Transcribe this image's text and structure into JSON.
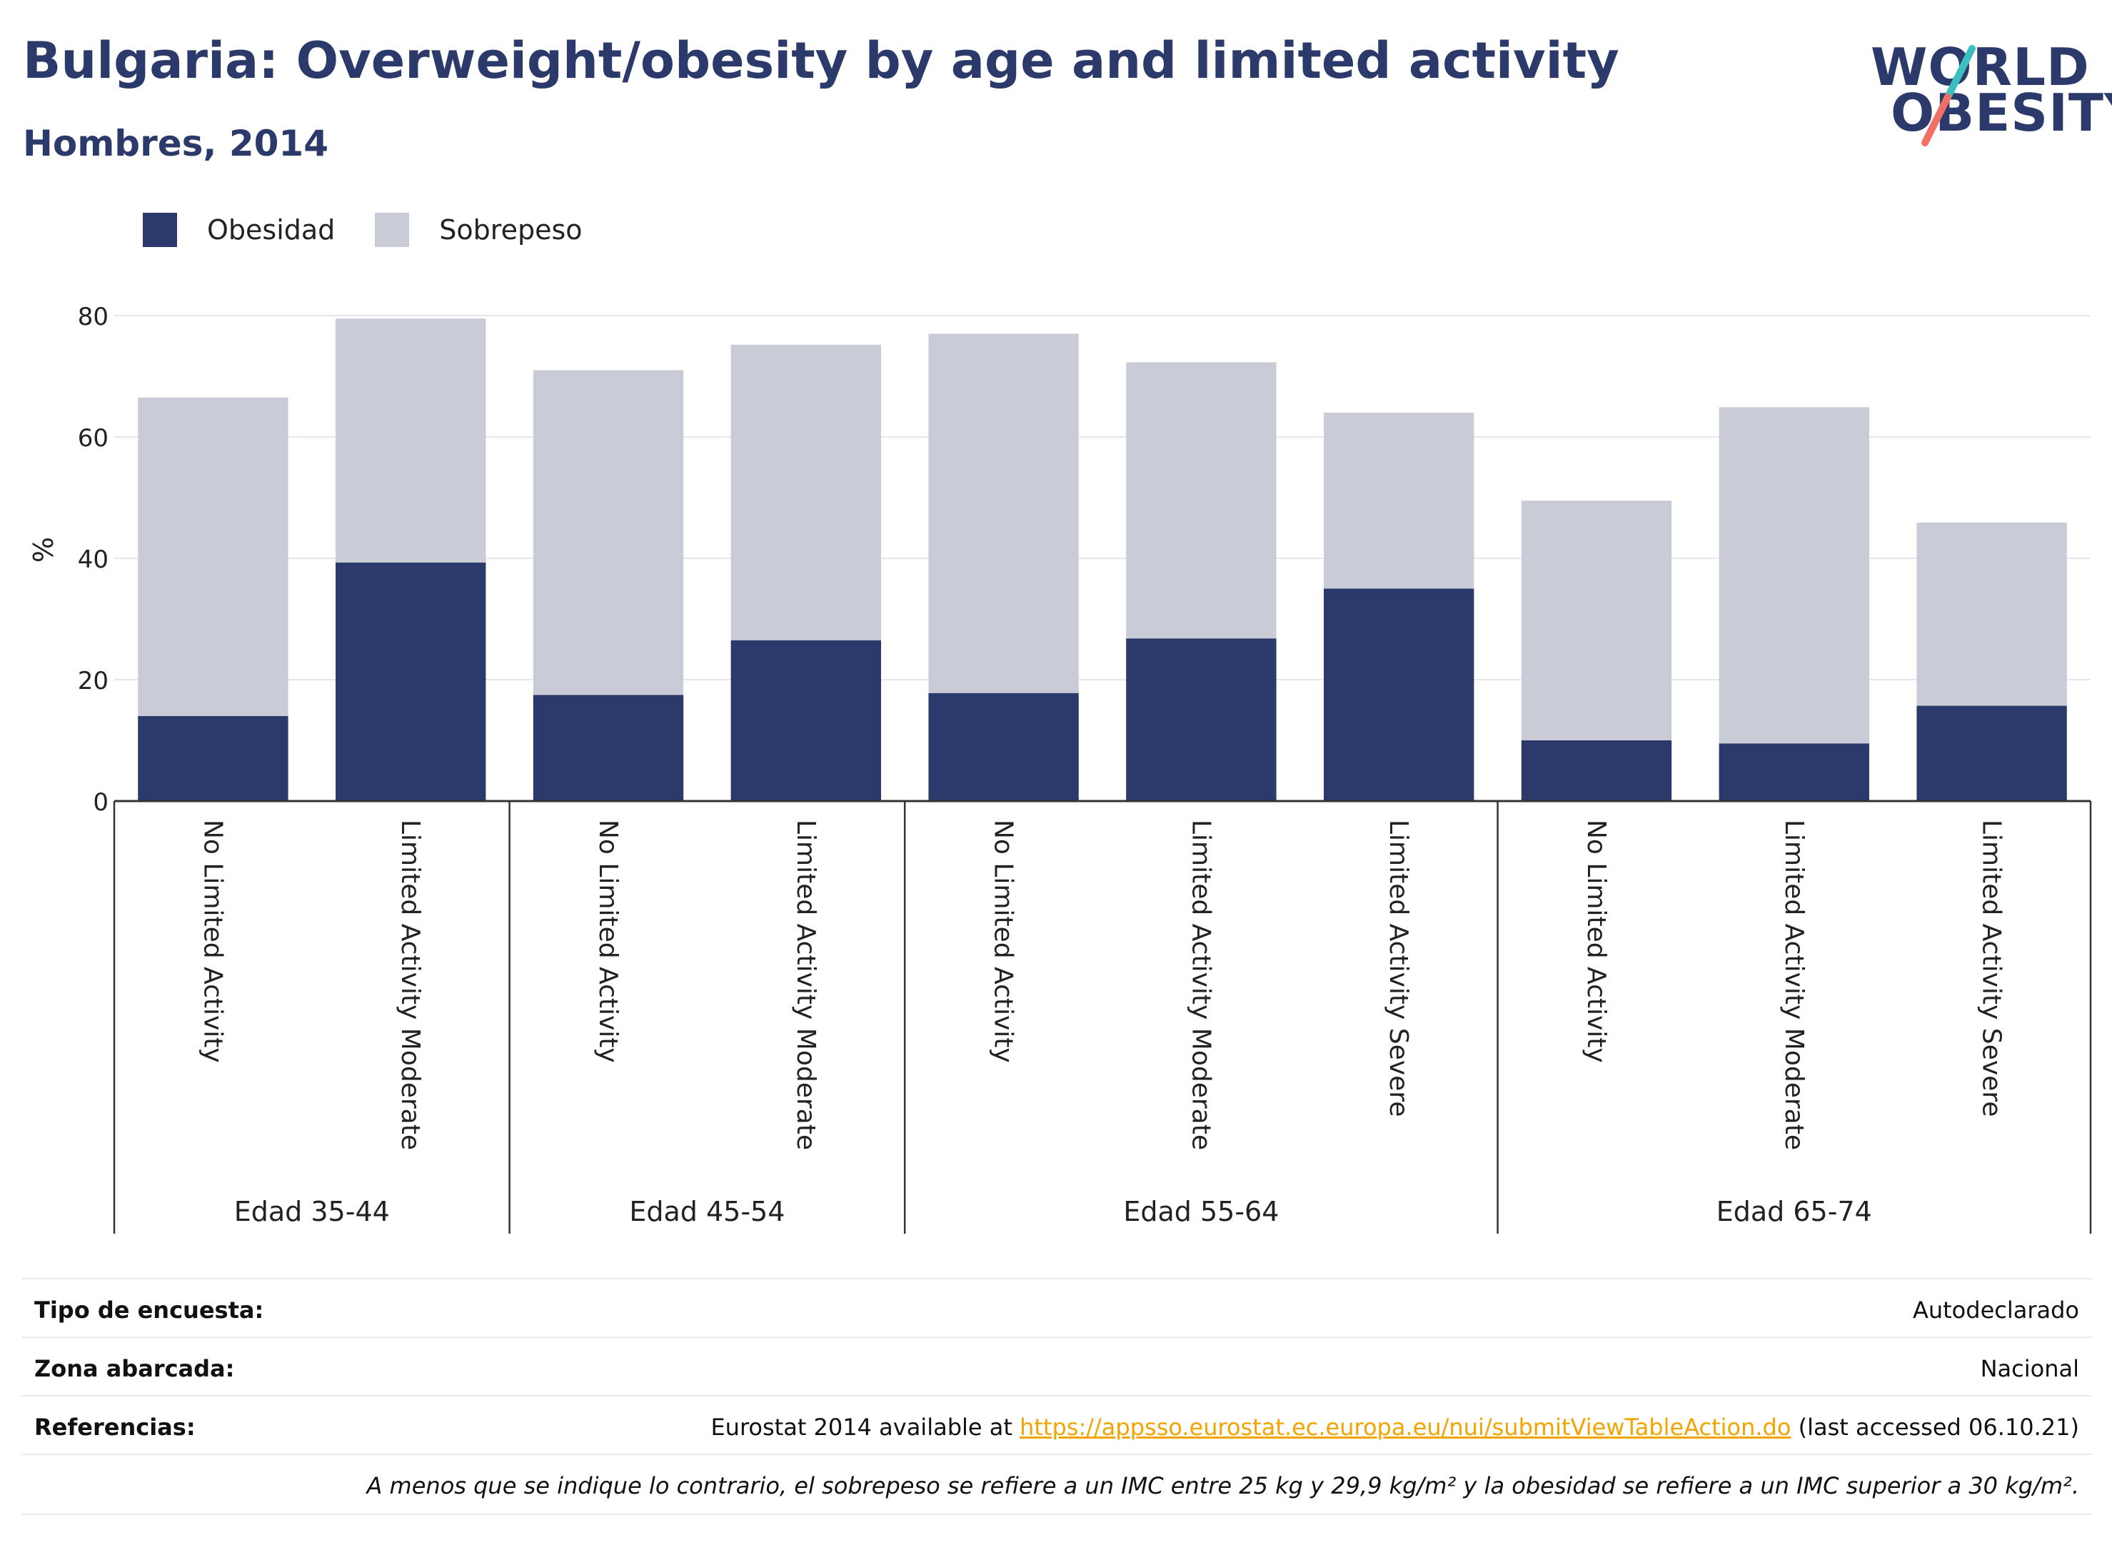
{
  "header": {
    "title": "Bulgaria: Overweight/obesity by age and limited activity",
    "subtitle": "Hombres, 2014"
  },
  "logo": {
    "line1": "WORLD",
    "line2": "OBESITY",
    "colors": {
      "teal": "#3bbfbf",
      "coral": "#f07065"
    }
  },
  "legend": {
    "obesity_label": "Obesidad",
    "overweight_label": "Sobrepeso"
  },
  "colors": {
    "obesity": "#2b3a6b",
    "overweight": "#c9cbd7",
    "grid": "#e6e7ee",
    "axis": "#333333",
    "link": "#f0a500"
  },
  "chart_data": {
    "type": "bar",
    "stacked": true,
    "ylabel": "%",
    "ylim": [
      0,
      80
    ],
    "yticks": [
      0,
      20,
      40,
      60,
      80
    ],
    "grid": true,
    "legend_position": "top-left",
    "groups": [
      {
        "label": "Edad 35-44",
        "count": 2
      },
      {
        "label": "Edad 45-54",
        "count": 2
      },
      {
        "label": "Edad 55-64",
        "count": 3
      },
      {
        "label": "Edad 65-74",
        "count": 3
      }
    ],
    "categories": [
      "No Limited Activity",
      "Limited Activity Moderate",
      "No Limited Activity",
      "Limited Activity Moderate",
      "No Limited Activity",
      "Limited Activity Moderate",
      "Limited Activity Severe",
      "No Limited Activity",
      "Limited Activity Moderate",
      "Limited Activity Severe"
    ],
    "series": [
      {
        "name": "Obesidad",
        "values": [
          14,
          39.3,
          17.5,
          26.5,
          17.8,
          26.8,
          35,
          10,
          9.5,
          15.7
        ]
      },
      {
        "name": "Sobrepeso",
        "values": [
          52.5,
          40.2,
          53.5,
          48.7,
          59.2,
          45.5,
          29,
          39.5,
          55.4,
          30.2
        ]
      }
    ]
  },
  "footer": {
    "survey_label": "Tipo de encuesta:",
    "survey_value": "Autodeclarado",
    "area_label": "Zona abarcada:",
    "area_value": "Nacional",
    "ref_label": "Referencias:",
    "ref_prefix": "Eurostat 2014 available at ",
    "ref_link": "https://appsso.eurostat.ec.europa.eu/nui/submitViewTableAction.do",
    "ref_suffix": " (last accessed 06.10.21)",
    "note": "A menos que se indique lo contrario, el sobrepeso se refiere a un IMC entre 25 kg y 29,9 kg/m² y la obesidad se refiere a un IMC superior a 30 kg/m²."
  }
}
